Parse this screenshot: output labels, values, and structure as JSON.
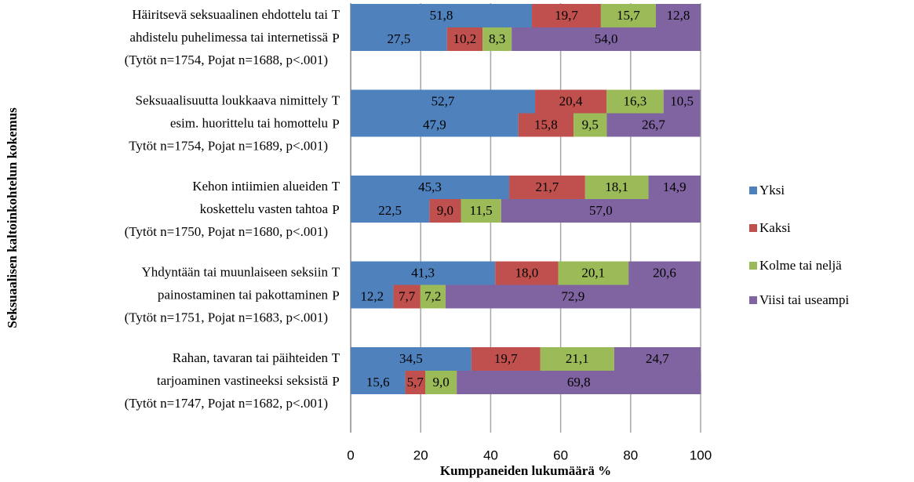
{
  "chart_data": {
    "type": "stacked-bar-horizontal",
    "y_axis_label": "Seksuaalisen kaltoinkohtelun kokemus",
    "x_axis_label": "Kumppaneiden lukumäärä %",
    "groups": [
      {
        "lines": [
          "Häiritsevä seksuaalinen ehdottelu tai",
          "ahdistelu puhelimessa tai internetissä",
          "(Tytöt n=1754, Pojat n=1688, p<.001)"
        ]
      },
      {
        "lines": [
          "Seksuaalisuutta loukkaava nimittely",
          "esim. huorittelu tai homottelu",
          "Tytöt n=1754, Pojat n=1689, p<.001)"
        ]
      },
      {
        "lines": [
          "Kehon intiimien alueiden",
          "koskettelu vasten tahtoa",
          "(Tytöt n=1750, Pojat n=1680, p<.001)"
        ]
      },
      {
        "lines": [
          "Yhdyntään tai muunlaiseen seksiin",
          "painostaminen tai pakottaminen",
          "(Tytöt n=1751, Pojat n=1683, p<.001)"
        ]
      },
      {
        "lines": [
          "Rahan, tavaran tai päihteiden",
          "tarjoaminen vastineeksi seksistä",
          "(Tytöt n=1747, Pojat n=1682, p<.001)"
        ]
      }
    ],
    "categories": [
      "T",
      "P",
      "T",
      "P",
      "T",
      "P",
      "T",
      "P",
      "T",
      "P"
    ],
    "series": [
      {
        "name": "Yksi",
        "color": "#4f81bd",
        "values": [
          51.8,
          27.5,
          52.7,
          47.9,
          45.3,
          22.5,
          41.3,
          12.2,
          34.5,
          15.6
        ],
        "value_labels": [
          "51,8",
          "27,5",
          "52,7",
          "47,9",
          "45,3",
          "22,5",
          "41,3",
          "12,2",
          "34,5",
          "15,6"
        ]
      },
      {
        "name": "Kaksi",
        "color": "#c0504d",
        "values": [
          19.7,
          10.2,
          20.4,
          15.8,
          21.7,
          9.0,
          18.0,
          7.7,
          19.7,
          5.7
        ],
        "value_labels": [
          "19,7",
          "10,2",
          "20,4",
          "15,8",
          "21,7",
          "9,0",
          "18,0",
          "7,7",
          "19,7",
          "5,7"
        ]
      },
      {
        "name": "Kolme tai neljä",
        "color": "#9bbb59",
        "values": [
          15.7,
          8.3,
          16.3,
          9.5,
          18.1,
          11.5,
          20.1,
          7.2,
          21.1,
          9.0
        ],
        "value_labels": [
          "15,7",
          "8,3",
          "16,3",
          "9,5",
          "18,1",
          "11,5",
          "20,1",
          "7,2",
          "21,1",
          "9,0"
        ]
      },
      {
        "name": "Viisi tai useampi",
        "color": "#8064a2",
        "values": [
          12.8,
          54.0,
          10.5,
          26.7,
          14.9,
          57.0,
          20.6,
          72.9,
          24.7,
          69.8
        ],
        "value_labels": [
          "12,8",
          "54,0",
          "10,5",
          "26,7",
          "14,9",
          "57,0",
          "20,6",
          "72,9",
          "24,7",
          "69,8"
        ]
      }
    ],
    "xlim": [
      0,
      100
    ],
    "xticks": [
      0,
      20,
      40,
      60,
      80,
      100
    ],
    "grid": true,
    "legend": "right"
  }
}
